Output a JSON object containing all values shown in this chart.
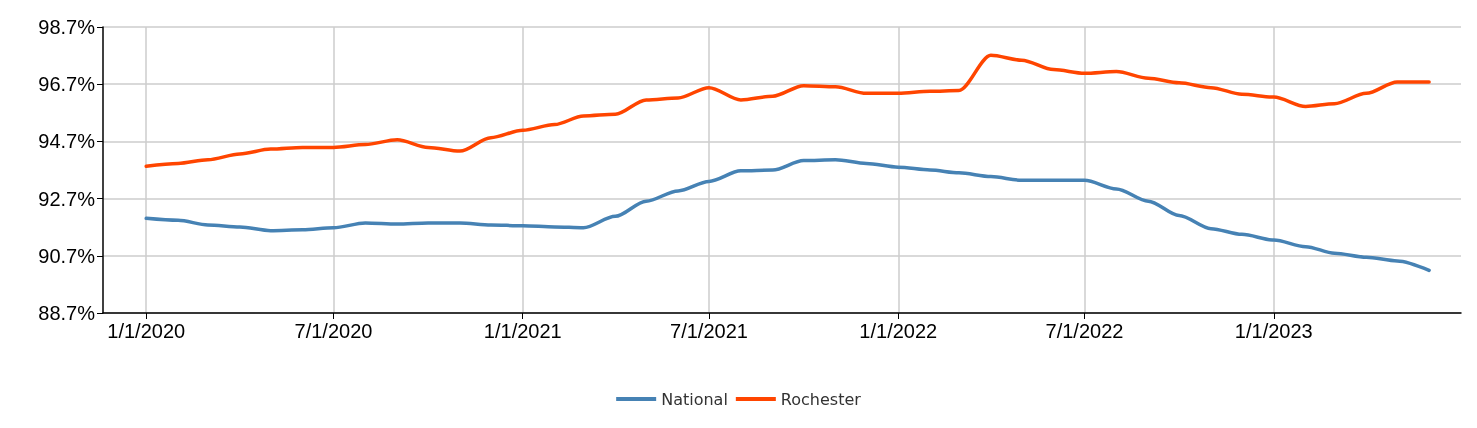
{
  "chart_data": {
    "type": "line",
    "x": [
      "2020-01-01",
      "2020-02-01",
      "2020-03-01",
      "2020-04-01",
      "2020-05-01",
      "2020-06-01",
      "2020-07-01",
      "2020-08-01",
      "2020-09-01",
      "2020-10-01",
      "2020-11-01",
      "2020-12-01",
      "2021-01-01",
      "2021-02-01",
      "2021-03-01",
      "2021-04-01",
      "2021-05-01",
      "2021-06-01",
      "2021-07-01",
      "2021-08-01",
      "2021-09-01",
      "2021-10-01",
      "2021-11-01",
      "2021-12-01",
      "2022-01-01",
      "2022-02-01",
      "2022-03-01",
      "2022-04-01",
      "2022-05-01",
      "2022-06-01",
      "2022-07-01",
      "2022-08-01",
      "2022-09-01",
      "2022-10-01",
      "2022-11-01",
      "2022-12-01",
      "2023-01-01",
      "2023-02-01",
      "2023-03-01",
      "2023-04-01",
      "2023-05-01",
      "2023-06-01"
    ],
    "series": [
      {
        "name": "National",
        "color": "#4682b4",
        "values": [
          92.01,
          91.94,
          91.78,
          91.71,
          91.58,
          91.61,
          91.68,
          91.85,
          91.81,
          91.85,
          91.85,
          91.78,
          91.75,
          91.71,
          91.68,
          92.08,
          92.61,
          92.97,
          93.3,
          93.67,
          93.7,
          94.03,
          94.06,
          93.93,
          93.8,
          93.7,
          93.6,
          93.47,
          93.34,
          93.34,
          93.34,
          93.04,
          92.61,
          92.11,
          91.65,
          91.45,
          91.25,
          91.02,
          90.79,
          90.65,
          90.52,
          90.19
        ]
      },
      {
        "name": "Rochester",
        "color": "#ff4500",
        "values": [
          93.83,
          93.93,
          94.06,
          94.26,
          94.43,
          94.49,
          94.49,
          94.59,
          94.76,
          94.49,
          94.36,
          94.83,
          95.09,
          95.29,
          95.59,
          95.65,
          96.15,
          96.22,
          96.58,
          96.15,
          96.28,
          96.65,
          96.61,
          96.38,
          96.38,
          96.45,
          96.48,
          97.71,
          97.54,
          97.21,
          97.08,
          97.14,
          96.91,
          96.75,
          96.58,
          96.35,
          96.25,
          95.92,
          96.02,
          96.38,
          96.78,
          96.78
        ]
      }
    ],
    "xlim": [
      "2019-11-20",
      "2023-07-02"
    ],
    "xticks": [
      {
        "value": "2020-01-01",
        "label": "1/1/2020"
      },
      {
        "value": "2020-07-01",
        "label": "7/1/2020"
      },
      {
        "value": "2021-01-01",
        "label": "1/1/2021"
      },
      {
        "value": "2021-07-01",
        "label": "7/1/2021"
      },
      {
        "value": "2022-01-01",
        "label": "1/1/2022"
      },
      {
        "value": "2022-07-01",
        "label": "7/1/2022"
      },
      {
        "value": "2023-01-01",
        "label": "1/1/2023"
      }
    ],
    "ylim": [
      88.7,
      98.7
    ],
    "yticks": [
      {
        "value": 88.7,
        "label": "88.7%"
      },
      {
        "value": 90.7,
        "label": "90.7%"
      },
      {
        "value": 92.7,
        "label": "92.7%"
      },
      {
        "value": 94.7,
        "label": "94.7%"
      },
      {
        "value": 96.7,
        "label": "96.7%"
      },
      {
        "value": 98.7,
        "label": "98.7%"
      }
    ],
    "grid": true,
    "legend": "bottom",
    "marker": "none",
    "line_style": "solid"
  }
}
